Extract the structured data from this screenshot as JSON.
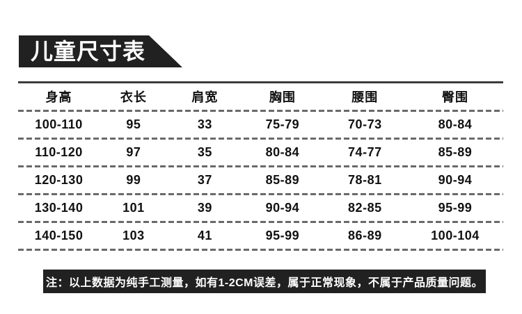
{
  "banner": {
    "title": "儿童尺寸表"
  },
  "table": {
    "headers": [
      "身高",
      "衣长",
      "肩宽",
      "胸围",
      "腰围",
      "臀围"
    ],
    "rows": [
      {
        "cells": [
          "100-110",
          "95",
          "33",
          "75-79",
          "70-73",
          "80-84"
        ]
      },
      {
        "cells": [
          "110-120",
          "97",
          "35",
          "80-84",
          "74-77",
          "85-89"
        ]
      },
      {
        "cells": [
          "120-130",
          "99",
          "37",
          "85-89",
          "78-81",
          "90-94"
        ]
      },
      {
        "cells": [
          "130-140",
          "101",
          "39",
          "90-94",
          "82-85",
          "95-99"
        ]
      },
      {
        "cells": [
          "140-150",
          "103",
          "41",
          "95-99",
          "86-89",
          "100-104"
        ]
      }
    ]
  },
  "note": {
    "text": "注：以上数据为纯手工测量，如有1-2CM误差，属于正常现象，不属于产品质量问题。"
  },
  "colors": {
    "banner_bg": "#212121",
    "note_bg": "#212121",
    "table_text": "#111111",
    "solid_line": "#3c3c3c",
    "dashed_line": "#696969"
  },
  "chart_data": {
    "type": "table",
    "title": "儿童尺寸表",
    "columns": [
      "身高",
      "衣长",
      "肩宽",
      "胸围",
      "腰围",
      "臀围"
    ],
    "rows": [
      [
        "100-110",
        "95",
        "33",
        "75-79",
        "70-73",
        "80-84"
      ],
      [
        "110-120",
        "97",
        "35",
        "80-84",
        "74-77",
        "85-89"
      ],
      [
        "120-130",
        "99",
        "37",
        "85-89",
        "78-81",
        "90-94"
      ],
      [
        "130-140",
        "101",
        "39",
        "90-94",
        "82-85",
        "95-99"
      ],
      [
        "140-150",
        "103",
        "41",
        "95-99",
        "86-89",
        "100-104"
      ]
    ],
    "footnote": "注：以上数据为纯手工测量，如有1-2CM误差，属于正常现象，不属于产品质量问题。",
    "layout": {
      "grid": "dashed horizontal separators",
      "top_border": "solid",
      "align": "center"
    }
  }
}
